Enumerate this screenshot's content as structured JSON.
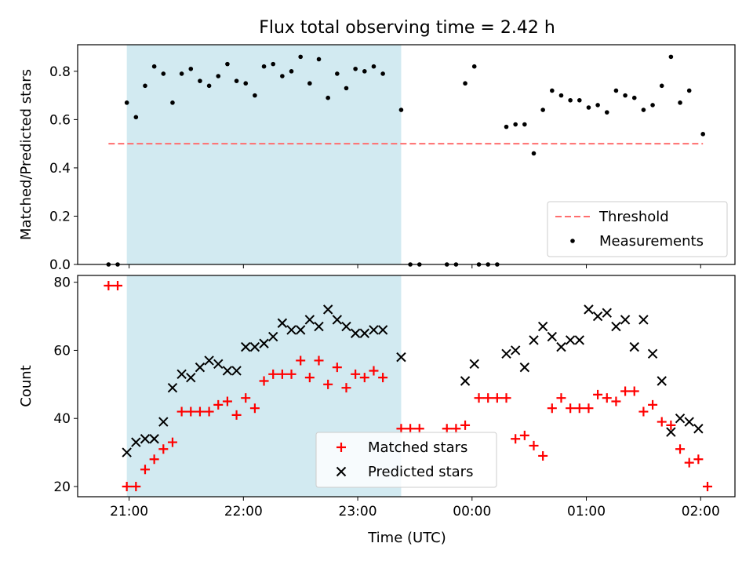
{
  "chart_data": {
    "type": "scatter",
    "title": "Flux total observing time = 2.42 h",
    "xlabel": "Time (UTC)",
    "x_unit": "hours since 21:00 UTC",
    "x_ticks": [
      {
        "v": 0,
        "label": "21:00"
      },
      {
        "v": 1,
        "label": "22:00"
      },
      {
        "v": 2,
        "label": "23:00"
      },
      {
        "v": 3,
        "label": "00:00"
      },
      {
        "v": 4,
        "label": "01:00"
      },
      {
        "v": 5,
        "label": "02:00"
      }
    ],
    "xlim": [
      -0.45,
      5.3
    ],
    "shaded_interval": {
      "start": -0.02,
      "end": 2.38,
      "color": "#add8e6"
    },
    "panels": [
      {
        "id": "ratio",
        "ylabel": "Matched/Predicted stars",
        "ylim": [
          0,
          0.91
        ],
        "y_ticks": [
          0.0,
          0.2,
          0.4,
          0.6,
          0.8
        ],
        "y_tick_labels": [
          "0.0",
          "0.2",
          "0.4",
          "0.6",
          "0.8"
        ],
        "legend": {
          "position": "lower right",
          "entries": [
            "Threshold",
            "Measurements"
          ]
        },
        "threshold": {
          "name": "Threshold",
          "value": 0.5,
          "x_range": [
            -0.18,
            5.02
          ],
          "color": "#ff6e6e",
          "style": "dashed"
        },
        "series": [
          {
            "name": "Measurements",
            "marker": "dot",
            "color": "#000000",
            "points": [
              [
                -0.18,
                0.0
              ],
              [
                -0.1,
                0.0
              ],
              [
                -0.02,
                0.67
              ],
              [
                0.06,
                0.61
              ],
              [
                0.14,
                0.74
              ],
              [
                0.22,
                0.82
              ],
              [
                0.3,
                0.79
              ],
              [
                0.38,
                0.67
              ],
              [
                0.46,
                0.79
              ],
              [
                0.54,
                0.81
              ],
              [
                0.62,
                0.76
              ],
              [
                0.7,
                0.74
              ],
              [
                0.78,
                0.78
              ],
              [
                0.86,
                0.83
              ],
              [
                0.94,
                0.76
              ],
              [
                1.02,
                0.75
              ],
              [
                1.1,
                0.7
              ],
              [
                1.18,
                0.82
              ],
              [
                1.26,
                0.83
              ],
              [
                1.34,
                0.78
              ],
              [
                1.42,
                0.8
              ],
              [
                1.5,
                0.86
              ],
              [
                1.58,
                0.75
              ],
              [
                1.66,
                0.85
              ],
              [
                1.74,
                0.69
              ],
              [
                1.82,
                0.79
              ],
              [
                1.9,
                0.73
              ],
              [
                1.98,
                0.81
              ],
              [
                2.06,
                0.8
              ],
              [
                2.14,
                0.82
              ],
              [
                2.22,
                0.79
              ],
              [
                2.38,
                0.64
              ],
              [
                2.46,
                0.0
              ],
              [
                2.54,
                0.0
              ],
              [
                2.78,
                0.0
              ],
              [
                2.86,
                0.0
              ],
              [
                2.94,
                0.75
              ],
              [
                3.02,
                0.82
              ],
              [
                3.06,
                0.0
              ],
              [
                3.14,
                0.0
              ],
              [
                3.22,
                0.0
              ],
              [
                3.3,
                0.57
              ],
              [
                3.38,
                0.58
              ],
              [
                3.46,
                0.58
              ],
              [
                3.54,
                0.46
              ],
              [
                3.62,
                0.64
              ],
              [
                3.7,
                0.72
              ],
              [
                3.78,
                0.7
              ],
              [
                3.86,
                0.68
              ],
              [
                3.94,
                0.68
              ],
              [
                4.02,
                0.65
              ],
              [
                4.1,
                0.66
              ],
              [
                4.18,
                0.63
              ],
              [
                4.26,
                0.72
              ],
              [
                4.34,
                0.7
              ],
              [
                4.42,
                0.69
              ],
              [
                4.5,
                0.64
              ],
              [
                4.58,
                0.66
              ],
              [
                4.66,
                0.74
              ],
              [
                4.74,
                0.86
              ],
              [
                4.82,
                0.67
              ],
              [
                4.9,
                0.72
              ],
              [
                5.02,
                0.54
              ]
            ]
          }
        ]
      },
      {
        "id": "counts",
        "ylabel": "Count",
        "ylim": [
          17,
          82
        ],
        "y_ticks": [
          20,
          40,
          60,
          80
        ],
        "y_tick_labels": [
          "20",
          "40",
          "60",
          "80"
        ],
        "legend": {
          "position": "lower center",
          "entries": [
            "Matched stars",
            "Predicted stars"
          ]
        },
        "series": [
          {
            "name": "Matched stars",
            "marker": "plus",
            "color": "#ff0000",
            "points": [
              [
                -0.18,
                79
              ],
              [
                -0.1,
                79
              ],
              [
                -0.02,
                20
              ],
              [
                0.06,
                20
              ],
              [
                0.14,
                25
              ],
              [
                0.22,
                28
              ],
              [
                0.3,
                31
              ],
              [
                0.38,
                33
              ],
              [
                0.46,
                42
              ],
              [
                0.54,
                42
              ],
              [
                0.62,
                42
              ],
              [
                0.7,
                42
              ],
              [
                0.78,
                44
              ],
              [
                0.86,
                45
              ],
              [
                0.94,
                41
              ],
              [
                1.02,
                46
              ],
              [
                1.1,
                43
              ],
              [
                1.18,
                51
              ],
              [
                1.26,
                53
              ],
              [
                1.34,
                53
              ],
              [
                1.42,
                53
              ],
              [
                1.5,
                57
              ],
              [
                1.58,
                52
              ],
              [
                1.66,
                57
              ],
              [
                1.74,
                50
              ],
              [
                1.82,
                55
              ],
              [
                1.9,
                49
              ],
              [
                1.98,
                53
              ],
              [
                2.06,
                52
              ],
              [
                2.14,
                54
              ],
              [
                2.22,
                52
              ],
              [
                2.38,
                37
              ],
              [
                2.46,
                37
              ],
              [
                2.54,
                37
              ],
              [
                2.78,
                37
              ],
              [
                2.86,
                37
              ],
              [
                2.94,
                38
              ],
              [
                3.06,
                46
              ],
              [
                3.14,
                46
              ],
              [
                3.22,
                46
              ],
              [
                3.3,
                46
              ],
              [
                3.38,
                34
              ],
              [
                3.46,
                35
              ],
              [
                3.54,
                32
              ],
              [
                3.62,
                29
              ],
              [
                3.7,
                43
              ],
              [
                3.78,
                46
              ],
              [
                3.86,
                43
              ],
              [
                3.94,
                43
              ],
              [
                4.02,
                43
              ],
              [
                4.1,
                47
              ],
              [
                4.18,
                46
              ],
              [
                4.26,
                45
              ],
              [
                4.34,
                48
              ],
              [
                4.42,
                48
              ],
              [
                4.5,
                42
              ],
              [
                4.58,
                44
              ],
              [
                4.66,
                39
              ],
              [
                4.74,
                38
              ],
              [
                4.82,
                31
              ],
              [
                4.9,
                27
              ],
              [
                4.98,
                28
              ],
              [
                5.06,
                20
              ]
            ]
          },
          {
            "name": "Predicted stars",
            "marker": "x",
            "color": "#000000",
            "points": [
              [
                -0.02,
                30
              ],
              [
                0.06,
                33
              ],
              [
                0.14,
                34
              ],
              [
                0.22,
                34
              ],
              [
                0.3,
                39
              ],
              [
                0.38,
                49
              ],
              [
                0.46,
                53
              ],
              [
                0.54,
                52
              ],
              [
                0.62,
                55
              ],
              [
                0.7,
                57
              ],
              [
                0.78,
                56
              ],
              [
                0.86,
                54
              ],
              [
                0.94,
                54
              ],
              [
                1.02,
                61
              ],
              [
                1.1,
                61
              ],
              [
                1.18,
                62
              ],
              [
                1.26,
                64
              ],
              [
                1.34,
                68
              ],
              [
                1.42,
                66
              ],
              [
                1.5,
                66
              ],
              [
                1.58,
                69
              ],
              [
                1.66,
                67
              ],
              [
                1.74,
                72
              ],
              [
                1.82,
                69
              ],
              [
                1.9,
                67
              ],
              [
                1.98,
                65
              ],
              [
                2.06,
                65
              ],
              [
                2.14,
                66
              ],
              [
                2.22,
                66
              ],
              [
                2.38,
                58
              ],
              [
                2.94,
                51
              ],
              [
                3.02,
                56
              ],
              [
                3.3,
                59
              ],
              [
                3.38,
                60
              ],
              [
                3.46,
                55
              ],
              [
                3.54,
                63
              ],
              [
                3.62,
                67
              ],
              [
                3.7,
                64
              ],
              [
                3.78,
                61
              ],
              [
                3.86,
                63
              ],
              [
                3.94,
                63
              ],
              [
                4.02,
                72
              ],
              [
                4.1,
                70
              ],
              [
                4.18,
                71
              ],
              [
                4.26,
                67
              ],
              [
                4.34,
                69
              ],
              [
                4.42,
                61
              ],
              [
                4.5,
                69
              ],
              [
                4.58,
                59
              ],
              [
                4.66,
                51
              ],
              [
                4.74,
                36
              ],
              [
                4.82,
                40
              ],
              [
                4.9,
                39
              ],
              [
                4.98,
                37
              ]
            ]
          }
        ]
      }
    ]
  }
}
